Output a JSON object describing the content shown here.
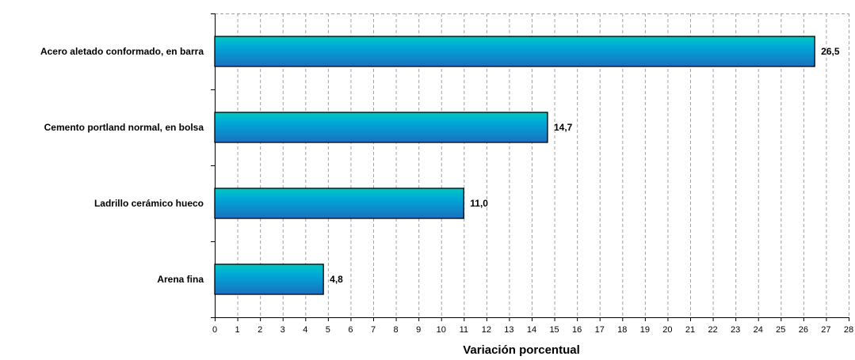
{
  "chart_data": {
    "type": "bar",
    "orientation": "horizontal",
    "categories": [
      "Acero aletado conformado, en barra",
      "Cemento portland normal, en bolsa",
      "Ladrillo cerámico hueco",
      "Arena fina"
    ],
    "values": [
      26.5,
      14.7,
      11.0,
      4.8
    ],
    "value_labels": [
      "26,5",
      "14,7",
      "11,0",
      "4,8"
    ],
    "xlabel": "Variación porcentual",
    "ylabel": "",
    "xlim": [
      0,
      28
    ],
    "x_ticks": [
      0,
      1,
      2,
      3,
      4,
      5,
      6,
      7,
      8,
      9,
      10,
      11,
      12,
      13,
      14,
      15,
      16,
      17,
      18,
      19,
      20,
      21,
      22,
      23,
      24,
      25,
      26,
      27,
      28
    ],
    "grid": "vertical dashed",
    "legend": "none",
    "colors": {
      "bar_light": "#00c8c0",
      "bar_mid": "#00a8d8",
      "bar_dark": "#1a6fc0",
      "bar_outline": "#000000",
      "grid": "#a0a0a0"
    }
  }
}
